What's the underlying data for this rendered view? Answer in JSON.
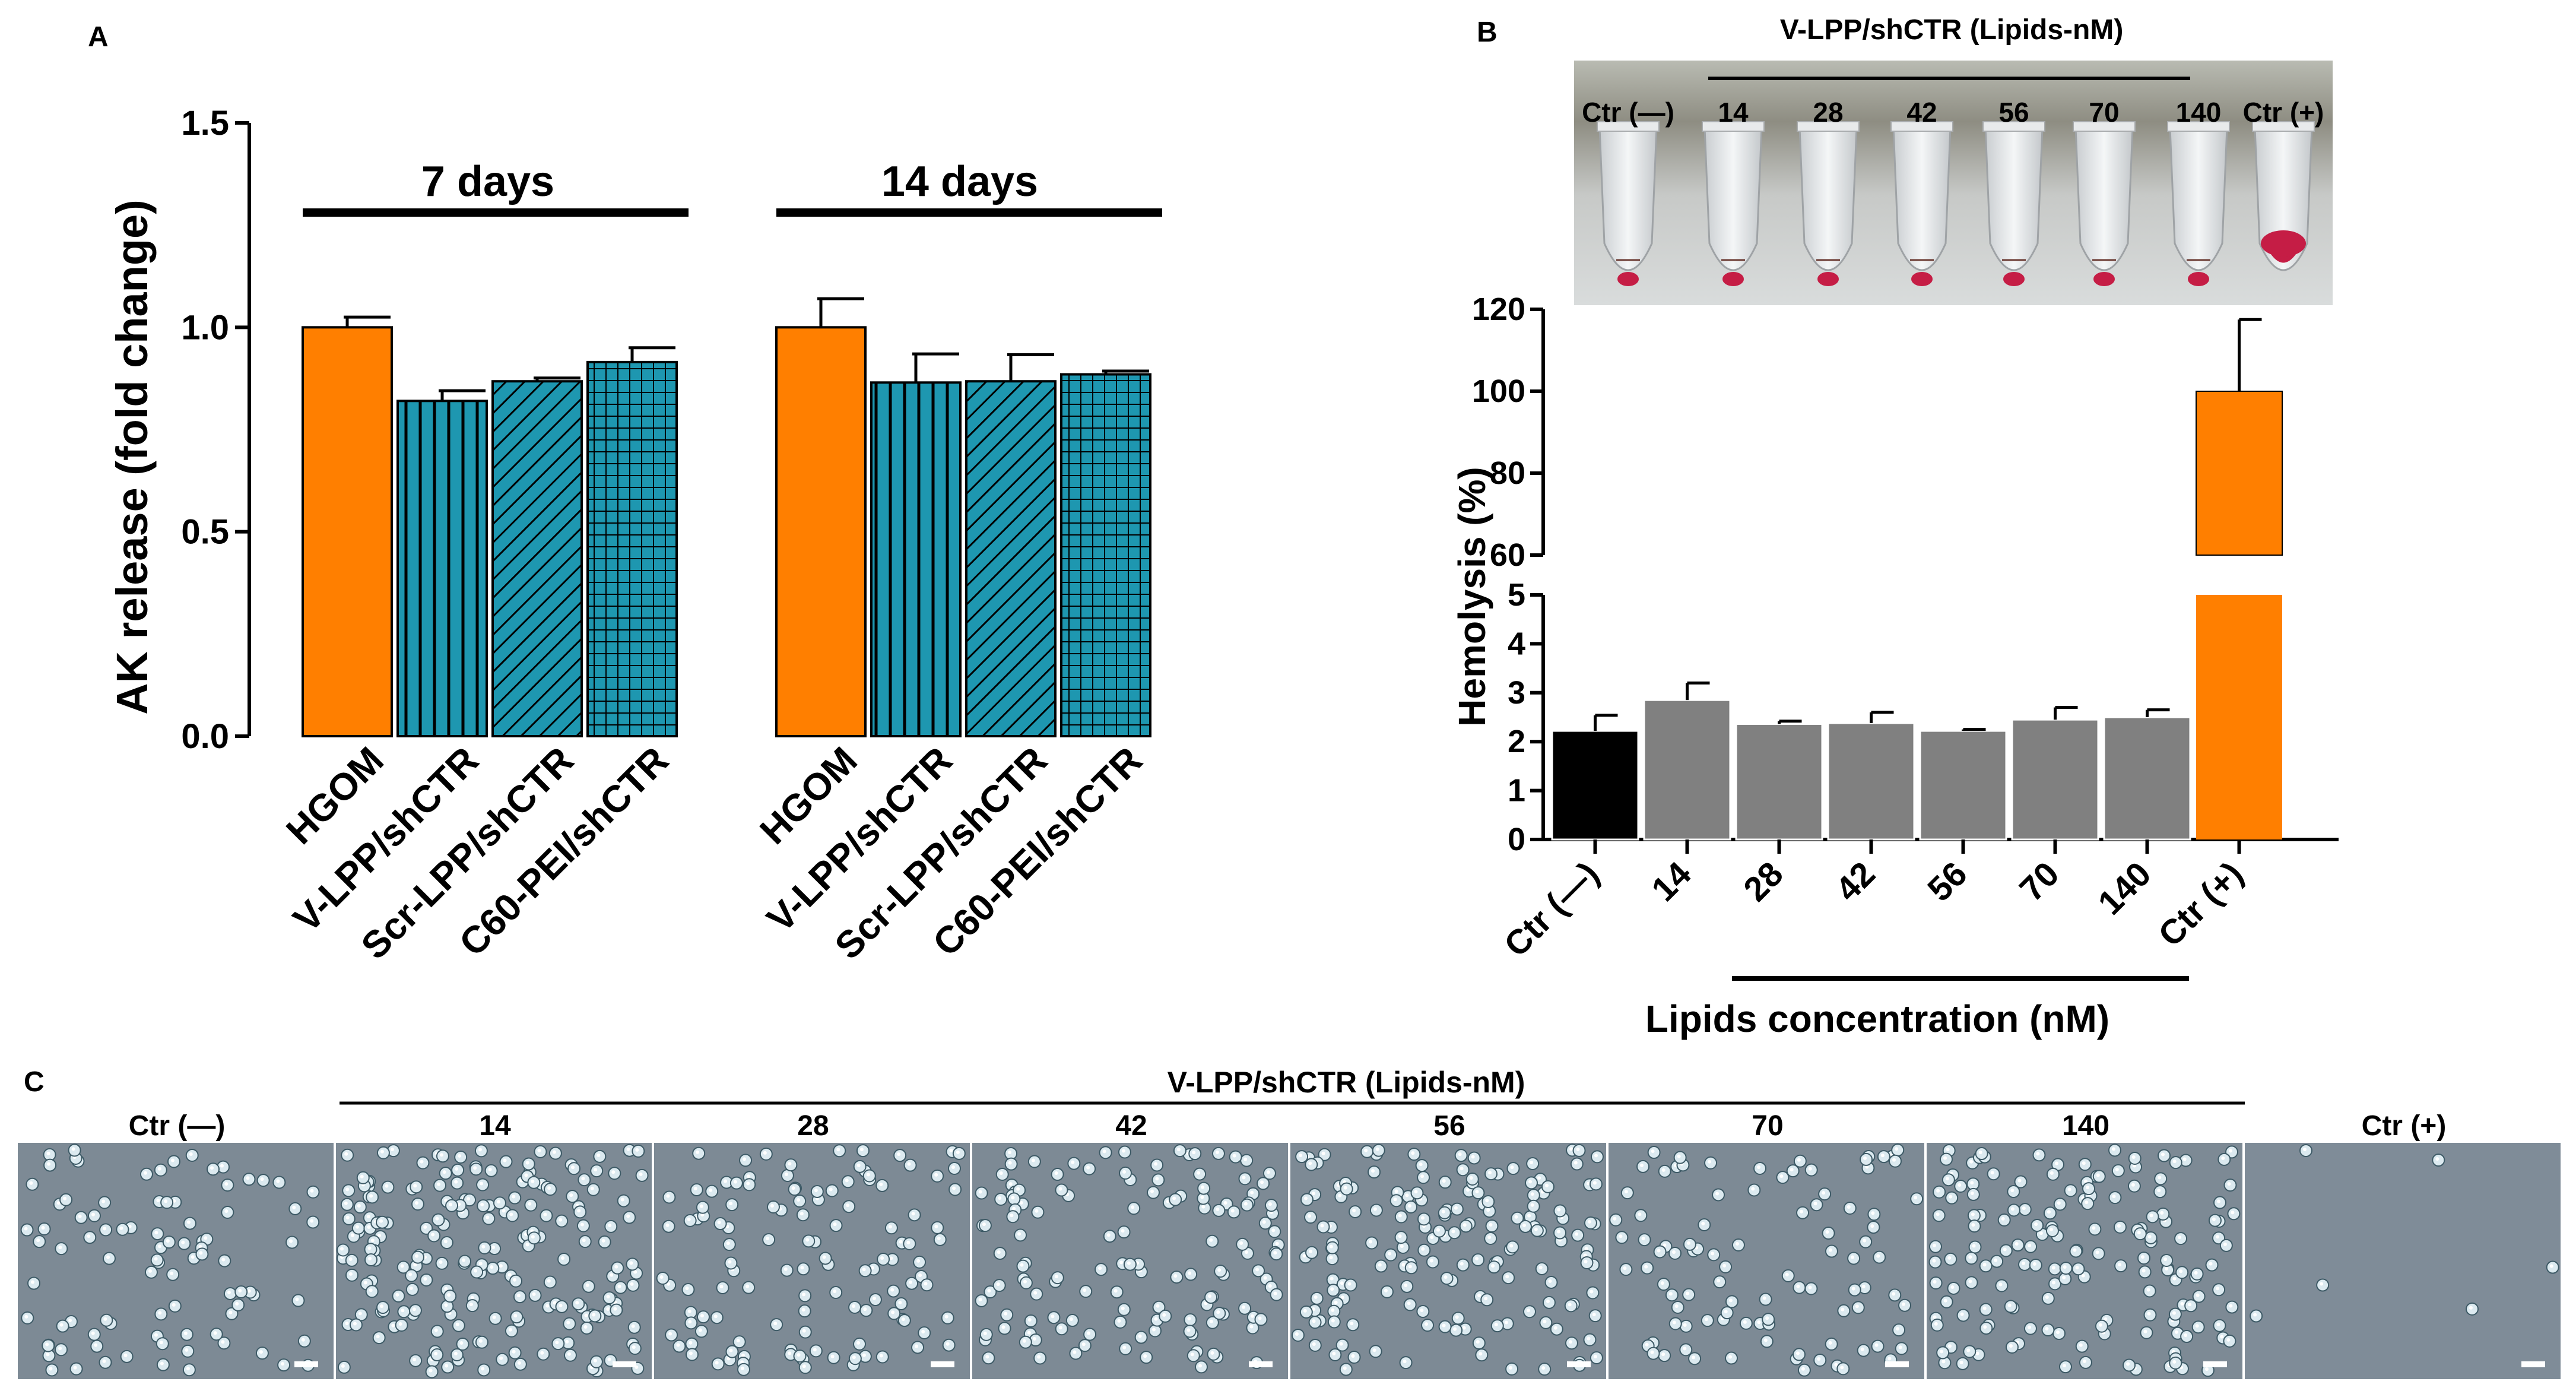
{
  "panels": {
    "a": {
      "letter": "A"
    },
    "b": {
      "letter": "B"
    },
    "c": {
      "letter": "C"
    }
  },
  "colors": {
    "orange": "#FF7F00",
    "teal": "#1E97B0",
    "black": "#000000",
    "gray": "#808080",
    "micro_bg": "#7D8A95",
    "cell": "#DCEAF0",
    "tube_red": "#C51D45"
  },
  "chart_data": [
    {
      "id": "panel-a",
      "type": "bar",
      "title": "",
      "ylabel": "AK release (fold change)",
      "xlabel": "",
      "ylim": [
        0,
        1.5
      ],
      "yticks": [
        "0.0",
        "0.5",
        "1.0",
        "1.5"
      ],
      "ytick_values": [
        0,
        0.5,
        1.0,
        1.5
      ],
      "groups": [
        {
          "label": "7 days",
          "bars": [
            {
              "category": "HGOM",
              "value": 1.0,
              "error": 0.025,
              "fill": "orange",
              "pattern": "solid"
            },
            {
              "category": "V-LPP/shCTR",
              "value": 0.82,
              "error": 0.025,
              "fill": "teal",
              "pattern": "vertical"
            },
            {
              "category": "Scr-LPP/shCTR",
              "value": 0.868,
              "error": 0.008,
              "fill": "teal",
              "pattern": "diagonal"
            },
            {
              "category": "C60-PEI/shCTR",
              "value": 0.915,
              "error": 0.035,
              "fill": "teal",
              "pattern": "grid"
            }
          ]
        },
        {
          "label": "14 days",
          "bars": [
            {
              "category": "HGOM",
              "value": 1.0,
              "error": 0.07,
              "fill": "orange",
              "pattern": "solid"
            },
            {
              "category": "V-LPP/shCTR",
              "value": 0.865,
              "error": 0.07,
              "fill": "teal",
              "pattern": "vertical"
            },
            {
              "category": "Scr-LPP/shCTR",
              "value": 0.868,
              "error": 0.065,
              "fill": "teal",
              "pattern": "diagonal"
            },
            {
              "category": "C60-PEI/shCTR",
              "value": 0.885,
              "error": 0.008,
              "fill": "teal",
              "pattern": "grid"
            }
          ]
        }
      ]
    },
    {
      "id": "panel-b",
      "type": "bar",
      "title": "",
      "ylabel": "Hemolysis (%)",
      "xlabel": "Lipids concentration (nM)",
      "axis_break": true,
      "ylim_lower": [
        0,
        5
      ],
      "ylim_upper": [
        60,
        120
      ],
      "yticks_lower": [
        "0",
        "1",
        "2",
        "3",
        "4",
        "5"
      ],
      "yticks_upper": [
        "60",
        "80",
        "100",
        "120"
      ],
      "categories": [
        "Ctr (—)",
        "14",
        "28",
        "42",
        "56",
        "70",
        "140",
        "Ctr (+)"
      ],
      "values": [
        2.22,
        2.85,
        2.36,
        2.38,
        2.22,
        2.45,
        2.5,
        100
      ],
      "errors": [
        0.32,
        0.35,
        0.06,
        0.22,
        0.03,
        0.25,
        0.15,
        17.5
      ],
      "fills": [
        "black",
        "gray",
        "gray",
        "gray",
        "gray",
        "gray",
        "gray",
        "orange"
      ],
      "bracket_label": ""
    }
  ],
  "tube_photo": {
    "header": "V-LPP/shCTR (Lipids-nM)",
    "labels": [
      "Ctr (—)",
      "14",
      "28",
      "42",
      "56",
      "70",
      "140",
      "Ctr (+)"
    ]
  },
  "micrographs": {
    "header": "V-LPP/shCTR (Lipids-nM)",
    "labels": [
      "Ctr (—)",
      "14",
      "28",
      "42",
      "56",
      "70",
      "140",
      "Ctr (+)"
    ],
    "cell_counts": [
      90,
      210,
      120,
      135,
      170,
      95,
      160,
      6
    ]
  }
}
